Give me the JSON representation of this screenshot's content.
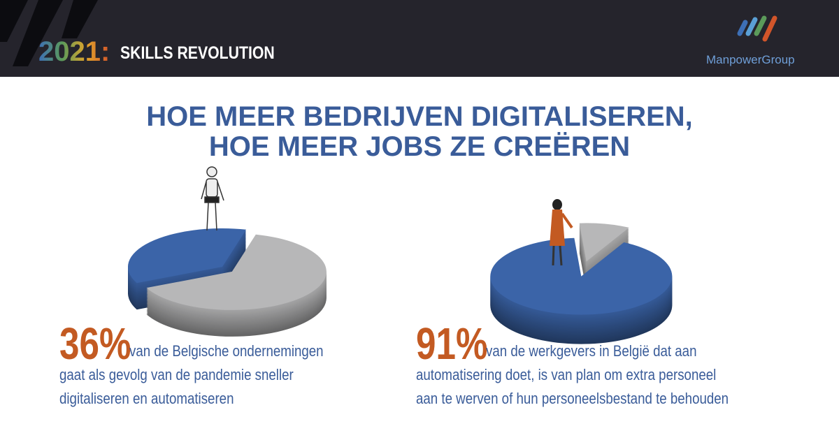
{
  "header": {
    "year": "2021:",
    "title": "SKILLS REVOLUTION",
    "brand": "ManpowerGroup"
  },
  "headline": [
    "HOE MEER BEDRIJVEN DIGITALISEREN,",
    "HOE MEER JOBS ZE CREËREN"
  ],
  "chart_data": [
    {
      "type": "pie",
      "values": [
        36,
        64
      ],
      "value_labels": [
        "36%",
        null
      ],
      "colors": [
        "#3b64a8",
        "#b7b7b8"
      ],
      "caption": [
        "van de Belgische ondernemingen",
        "gaat als gevolg van de pandemie sneller",
        "digitaliseren en automatiseren"
      ]
    },
    {
      "type": "pie",
      "values": [
        91,
        9
      ],
      "value_labels": [
        "91%",
        null
      ],
      "colors": [
        "#3b64a8",
        "#b7b7b8"
      ],
      "caption": [
        "van de werkgevers in België dat aan",
        "automatisering doet, is van plan om extra personeel",
        "aan te werven of hun personeelsbestand te behouden"
      ]
    }
  ]
}
